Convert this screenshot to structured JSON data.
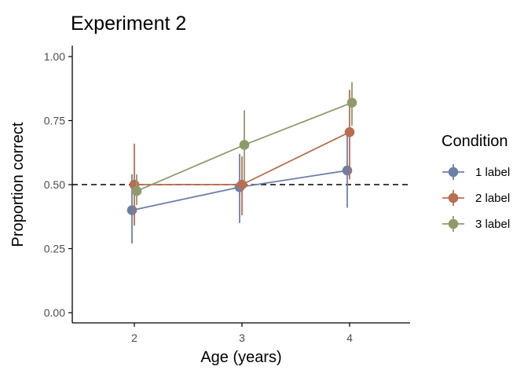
{
  "chart_data": {
    "type": "line",
    "title": "Experiment 2",
    "xlabel": "Age (years)",
    "ylabel": "Proportion correct",
    "x_ticks": [
      "2",
      "3",
      "4"
    ],
    "y_ticks": [
      "0.00",
      "0.25",
      "0.50",
      "0.75",
      "1.00"
    ],
    "xlim": [
      1.6,
      4.55
    ],
    "ylim": [
      -0.04,
      1.04
    ],
    "reference_line": {
      "y": 0.5,
      "style": "dashed"
    },
    "grid": false,
    "legend": {
      "title": "Condition",
      "position": "right"
    },
    "series": [
      {
        "name": "1 label",
        "color": "#6e7fa6",
        "x": [
          2,
          3,
          4
        ],
        "y": [
          0.4,
          0.49,
          0.555
        ],
        "lower": [
          0.27,
          0.35,
          0.41
        ],
        "upper": [
          0.54,
          0.62,
          0.7
        ]
      },
      {
        "name": "2 label",
        "color": "#b86e52",
        "x": [
          2,
          3,
          4
        ],
        "y": [
          0.5,
          0.5,
          0.705
        ],
        "lower": [
          0.34,
          0.38,
          0.52
        ],
        "upper": [
          0.66,
          0.61,
          0.87
        ]
      },
      {
        "name": "3 label",
        "color": "#8f9a6c",
        "x": [
          2,
          3,
          4
        ],
        "y": [
          0.475,
          0.655,
          0.82
        ],
        "lower": [
          0.42,
          0.51,
          0.73
        ],
        "upper": [
          0.54,
          0.79,
          0.9
        ]
      }
    ]
  }
}
